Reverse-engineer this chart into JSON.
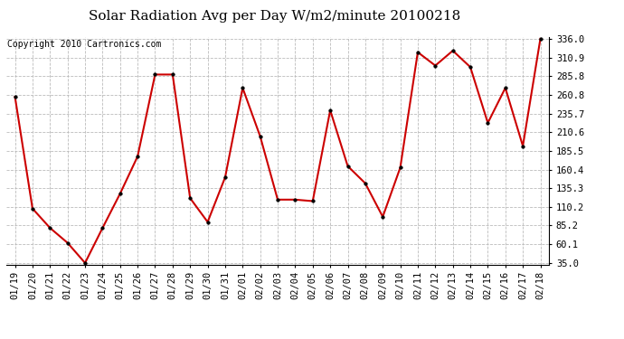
{
  "title": "Solar Radiation Avg per Day W/m2/minute 20100218",
  "copyright_text": "Copyright 2010 Cartronics.com",
  "x_labels": [
    "01/19",
    "01/20",
    "01/21",
    "01/22",
    "01/23",
    "01/24",
    "01/25",
    "01/26",
    "01/27",
    "01/28",
    "01/29",
    "01/30",
    "01/31",
    "02/01",
    "02/02",
    "02/03",
    "02/04",
    "02/05",
    "02/06",
    "02/07",
    "02/08",
    "02/09",
    "02/10",
    "02/11",
    "02/12",
    "02/13",
    "02/14",
    "02/15",
    "02/16",
    "02/17",
    "02/18"
  ],
  "y_values": [
    258.0,
    108.0,
    82.0,
    62.0,
    35.0,
    82.0,
    128.0,
    178.0,
    288.0,
    288.0,
    122.0,
    90.0,
    150.0,
    270.0,
    205.0,
    120.0,
    120.0,
    118.0,
    240.0,
    165.0,
    142.0,
    97.0,
    163.0,
    318.0,
    300.0,
    320.0,
    298.0,
    223.0,
    270.0,
    192.0,
    336.0
  ],
  "y_min": 35.0,
  "y_max": 336.0,
  "y_ticks": [
    35.0,
    60.1,
    85.2,
    110.2,
    135.3,
    160.4,
    185.5,
    210.6,
    235.7,
    260.8,
    285.8,
    310.9,
    336.0
  ],
  "line_color": "#cc0000",
  "marker_color": "#000000",
  "bg_color": "#ffffff",
  "grid_color": "#bbbbbb",
  "title_fontsize": 11,
  "copyright_fontsize": 7,
  "tick_fontsize": 7.5
}
